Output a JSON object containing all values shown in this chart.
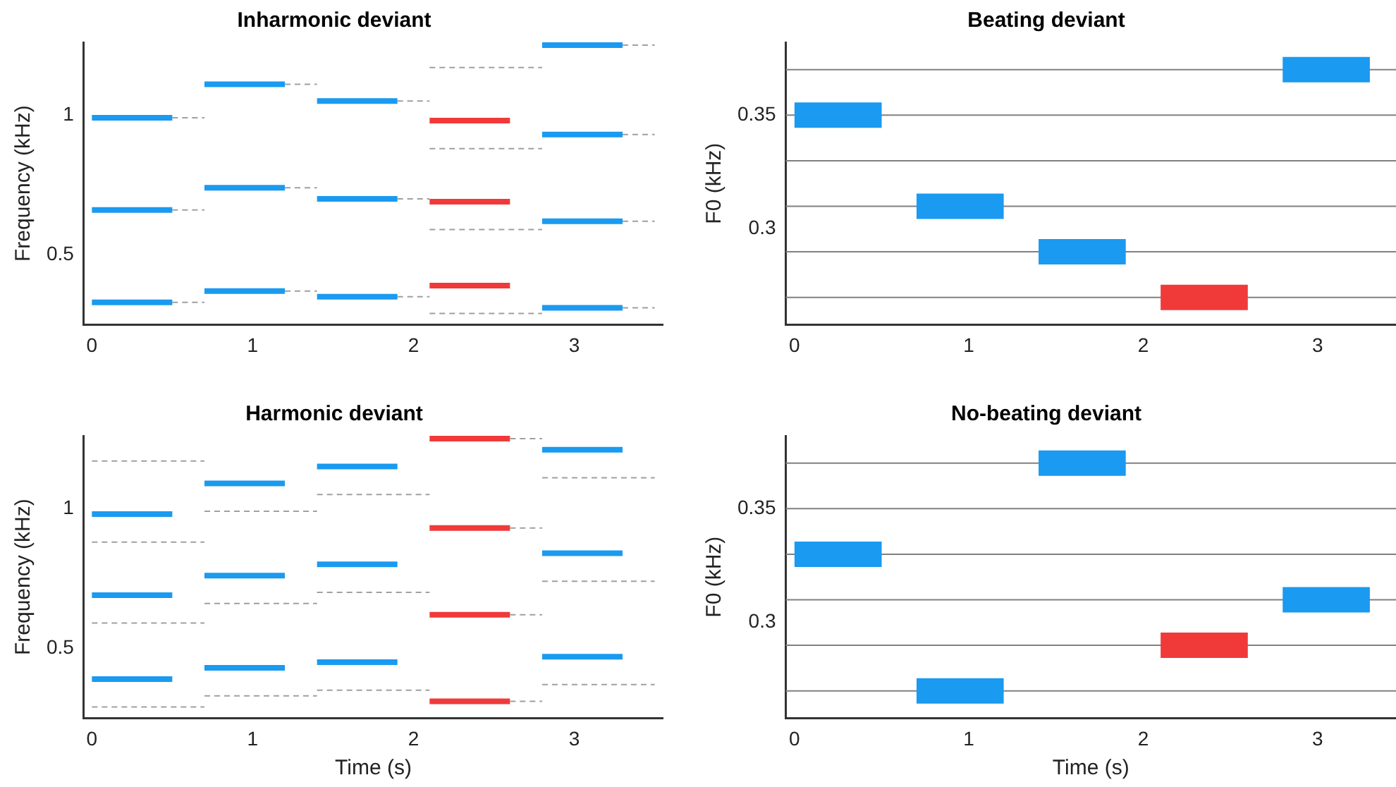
{
  "chart_data": [
    {
      "type": "line",
      "title": "Inharmonic deviant",
      "ylabel": "Frequency (kHz)",
      "xlim": [
        -0.05,
        3.55
      ],
      "xticks": [
        0,
        1,
        2,
        3
      ],
      "ylim": [
        0.25,
        1.26
      ],
      "yticks": [
        0.5,
        1
      ],
      "grid": false,
      "legend": false,
      "marker": "none",
      "series": [
        {
          "color": "#1a9af0",
          "x": [
            0,
            0.5
          ],
          "values": [
            0.99,
            0.99
          ]
        },
        {
          "color": "#1a9af0",
          "x": [
            0,
            0.5
          ],
          "values": [
            0.66,
            0.66
          ]
        },
        {
          "color": "#1a9af0",
          "x": [
            0,
            0.5
          ],
          "values": [
            0.33,
            0.33
          ]
        },
        {
          "color": "#1a9af0",
          "x": [
            0.7,
            1.2
          ],
          "values": [
            1.11,
            1.11
          ]
        },
        {
          "color": "#1a9af0",
          "x": [
            0.7,
            1.2
          ],
          "values": [
            0.74,
            0.74
          ]
        },
        {
          "color": "#1a9af0",
          "x": [
            0.7,
            1.2
          ],
          "values": [
            0.37,
            0.37
          ]
        },
        {
          "color": "#1a9af0",
          "x": [
            1.4,
            1.9
          ],
          "values": [
            1.05,
            1.05
          ]
        },
        {
          "color": "#1a9af0",
          "x": [
            1.4,
            1.9
          ],
          "values": [
            0.7,
            0.7
          ]
        },
        {
          "color": "#1a9af0",
          "x": [
            1.4,
            1.9
          ],
          "values": [
            0.35,
            0.35
          ]
        },
        {
          "color": "#f03a3a",
          "x": [
            2.1,
            2.6
          ],
          "values": [
            0.98,
            0.98
          ]
        },
        {
          "color": "#f03a3a",
          "x": [
            2.1,
            2.6
          ],
          "values": [
            0.69,
            0.69
          ]
        },
        {
          "color": "#f03a3a",
          "x": [
            2.1,
            2.6
          ],
          "values": [
            0.39,
            0.39
          ]
        },
        {
          "color": "#1a9af0",
          "x": [
            2.8,
            3.3
          ],
          "values": [
            1.25,
            1.25
          ]
        },
        {
          "color": "#1a9af0",
          "x": [
            2.8,
            3.3
          ],
          "values": [
            0.93,
            0.93
          ]
        },
        {
          "color": "#1a9af0",
          "x": [
            2.8,
            3.3
          ],
          "values": [
            0.62,
            0.62
          ]
        },
        {
          "color": "#1a9af0",
          "x": [
            2.8,
            3.3
          ],
          "values": [
            0.31,
            0.31
          ]
        },
        {
          "color": "#a0a0a0",
          "line_style": "dashed",
          "x": [
            0.5,
            0.7
          ],
          "values": [
            0.99,
            0.99
          ]
        },
        {
          "color": "#a0a0a0",
          "line_style": "dashed",
          "x": [
            0.5,
            0.7
          ],
          "values": [
            0.66,
            0.66
          ]
        },
        {
          "color": "#a0a0a0",
          "line_style": "dashed",
          "x": [
            0.5,
            0.7
          ],
          "values": [
            0.33,
            0.33
          ]
        },
        {
          "color": "#a0a0a0",
          "line_style": "dashed",
          "x": [
            1.2,
            1.4
          ],
          "values": [
            1.11,
            1.11
          ]
        },
        {
          "color": "#a0a0a0",
          "line_style": "dashed",
          "x": [
            1.2,
            1.4
          ],
          "values": [
            0.74,
            0.74
          ]
        },
        {
          "color": "#a0a0a0",
          "line_style": "dashed",
          "x": [
            1.2,
            1.4
          ],
          "values": [
            0.37,
            0.37
          ]
        },
        {
          "color": "#a0a0a0",
          "line_style": "dashed",
          "x": [
            1.9,
            2.1
          ],
          "values": [
            1.05,
            1.05
          ]
        },
        {
          "color": "#a0a0a0",
          "line_style": "dashed",
          "x": [
            1.9,
            2.1
          ],
          "values": [
            0.7,
            0.7
          ]
        },
        {
          "color": "#a0a0a0",
          "line_style": "dashed",
          "x": [
            1.9,
            2.1
          ],
          "values": [
            0.35,
            0.35
          ]
        },
        {
          "color": "#a0a0a0",
          "line_style": "dashed",
          "x": [
            2.1,
            2.8
          ],
          "values": [
            1.17,
            1.17
          ]
        },
        {
          "color": "#a0a0a0",
          "line_style": "dashed",
          "x": [
            2.1,
            2.8
          ],
          "values": [
            0.88,
            0.88
          ]
        },
        {
          "color": "#a0a0a0",
          "line_style": "dashed",
          "x": [
            2.1,
            2.8
          ],
          "values": [
            0.59,
            0.59
          ]
        },
        {
          "color": "#a0a0a0",
          "line_style": "dashed",
          "x": [
            2.1,
            2.8
          ],
          "values": [
            0.29,
            0.29
          ]
        },
        {
          "color": "#a0a0a0",
          "line_style": "dashed",
          "x": [
            3.3,
            3.5
          ],
          "values": [
            1.25,
            1.25
          ]
        },
        {
          "color": "#a0a0a0",
          "line_style": "dashed",
          "x": [
            3.3,
            3.5
          ],
          "values": [
            0.93,
            0.93
          ]
        },
        {
          "color": "#a0a0a0",
          "line_style": "dashed",
          "x": [
            3.3,
            3.5
          ],
          "values": [
            0.62,
            0.62
          ]
        },
        {
          "color": "#a0a0a0",
          "line_style": "dashed",
          "x": [
            3.3,
            3.5
          ],
          "values": [
            0.31,
            0.31
          ]
        }
      ]
    },
    {
      "type": "line",
      "title": "Beating deviant",
      "ylabel": "F0 (kHz)",
      "xlim": [
        -0.05,
        3.45
      ],
      "xticks": [
        0,
        1,
        2,
        3
      ],
      "ylim": [
        0.258,
        0.382
      ],
      "yticks": [
        0.3,
        0.35
      ],
      "grid": false,
      "legend": false,
      "marker": "none",
      "ref_lines": [
        {
          "axis": "y",
          "value": 0.27,
          "color": "#808080"
        },
        {
          "axis": "y",
          "value": 0.29,
          "color": "#808080"
        },
        {
          "axis": "y",
          "value": 0.31,
          "color": "#808080"
        },
        {
          "axis": "y",
          "value": 0.33,
          "color": "#808080"
        },
        {
          "axis": "y",
          "value": 0.35,
          "color": "#808080"
        },
        {
          "axis": "y",
          "value": 0.37,
          "color": "#808080"
        }
      ],
      "series": [
        {
          "color": "#1a9af0",
          "x": [
            0,
            0.5
          ],
          "values": [
            0.35,
            0.35
          ]
        },
        {
          "color": "#1a9af0",
          "x": [
            0.7,
            1.2
          ],
          "values": [
            0.31,
            0.31
          ]
        },
        {
          "color": "#1a9af0",
          "x": [
            1.4,
            1.9
          ],
          "values": [
            0.29,
            0.29
          ]
        },
        {
          "color": "#f03a3a",
          "x": [
            2.1,
            2.6
          ],
          "values": [
            0.27,
            0.27
          ]
        },
        {
          "color": "#1a9af0",
          "x": [
            2.8,
            3.3
          ],
          "values": [
            0.37,
            0.37
          ]
        }
      ]
    },
    {
      "type": "line",
      "title": "Harmonic deviant",
      "xlabel": "Time (s)",
      "ylabel": "Frequency (kHz)",
      "xlim": [
        -0.05,
        3.55
      ],
      "xticks": [
        0,
        1,
        2,
        3
      ],
      "ylim": [
        0.25,
        1.26
      ],
      "yticks": [
        0.5,
        1
      ],
      "grid": false,
      "legend": false,
      "marker": "none",
      "series": [
        {
          "color": "#1a9af0",
          "x": [
            0,
            0.5
          ],
          "values": [
            0.98,
            0.98
          ]
        },
        {
          "color": "#1a9af0",
          "x": [
            0,
            0.5
          ],
          "values": [
            0.69,
            0.69
          ]
        },
        {
          "color": "#1a9af0",
          "x": [
            0,
            0.5
          ],
          "values": [
            0.39,
            0.39
          ]
        },
        {
          "color": "#1a9af0",
          "x": [
            0.7,
            1.2
          ],
          "values": [
            1.09,
            1.09
          ]
        },
        {
          "color": "#1a9af0",
          "x": [
            0.7,
            1.2
          ],
          "values": [
            0.76,
            0.76
          ]
        },
        {
          "color": "#1a9af0",
          "x": [
            0.7,
            1.2
          ],
          "values": [
            0.43,
            0.43
          ]
        },
        {
          "color": "#1a9af0",
          "x": [
            1.4,
            1.9
          ],
          "values": [
            1.15,
            1.15
          ]
        },
        {
          "color": "#1a9af0",
          "x": [
            1.4,
            1.9
          ],
          "values": [
            0.8,
            0.8
          ]
        },
        {
          "color": "#1a9af0",
          "x": [
            1.4,
            1.9
          ],
          "values": [
            0.45,
            0.45
          ]
        },
        {
          "color": "#f03a3a",
          "x": [
            2.1,
            2.6
          ],
          "values": [
            1.25,
            1.25
          ]
        },
        {
          "color": "#f03a3a",
          "x": [
            2.1,
            2.6
          ],
          "values": [
            0.93,
            0.93
          ]
        },
        {
          "color": "#f03a3a",
          "x": [
            2.1,
            2.6
          ],
          "values": [
            0.62,
            0.62
          ]
        },
        {
          "color": "#f03a3a",
          "x": [
            2.1,
            2.6
          ],
          "values": [
            0.31,
            0.31
          ]
        },
        {
          "color": "#1a9af0",
          "x": [
            2.8,
            3.3
          ],
          "values": [
            1.21,
            1.21
          ]
        },
        {
          "color": "#1a9af0",
          "x": [
            2.8,
            3.3
          ],
          "values": [
            0.84,
            0.84
          ]
        },
        {
          "color": "#1a9af0",
          "x": [
            2.8,
            3.3
          ],
          "values": [
            0.47,
            0.47
          ]
        },
        {
          "color": "#a0a0a0",
          "line_style": "dashed",
          "x": [
            0,
            0.7
          ],
          "values": [
            1.17,
            1.17
          ]
        },
        {
          "color": "#a0a0a0",
          "line_style": "dashed",
          "x": [
            0,
            0.7
          ],
          "values": [
            0.88,
            0.88
          ]
        },
        {
          "color": "#a0a0a0",
          "line_style": "dashed",
          "x": [
            0,
            0.7
          ],
          "values": [
            0.59,
            0.59
          ]
        },
        {
          "color": "#a0a0a0",
          "line_style": "dashed",
          "x": [
            0,
            0.7
          ],
          "values": [
            0.29,
            0.29
          ]
        },
        {
          "color": "#a0a0a0",
          "line_style": "dashed",
          "x": [
            0.7,
            1.4
          ],
          "values": [
            0.99,
            0.99
          ]
        },
        {
          "color": "#a0a0a0",
          "line_style": "dashed",
          "x": [
            0.7,
            1.4
          ],
          "values": [
            0.66,
            0.66
          ]
        },
        {
          "color": "#a0a0a0",
          "line_style": "dashed",
          "x": [
            0.7,
            1.4
          ],
          "values": [
            0.33,
            0.33
          ]
        },
        {
          "color": "#a0a0a0",
          "line_style": "dashed",
          "x": [
            1.4,
            2.1
          ],
          "values": [
            1.05,
            1.05
          ]
        },
        {
          "color": "#a0a0a0",
          "line_style": "dashed",
          "x": [
            1.4,
            2.1
          ],
          "values": [
            0.7,
            0.7
          ]
        },
        {
          "color": "#a0a0a0",
          "line_style": "dashed",
          "x": [
            1.4,
            2.1
          ],
          "values": [
            0.35,
            0.35
          ]
        },
        {
          "color": "#a0a0a0",
          "line_style": "dashed",
          "x": [
            2.6,
            2.8
          ],
          "values": [
            1.25,
            1.25
          ]
        },
        {
          "color": "#a0a0a0",
          "line_style": "dashed",
          "x": [
            2.6,
            2.8
          ],
          "values": [
            0.93,
            0.93
          ]
        },
        {
          "color": "#a0a0a0",
          "line_style": "dashed",
          "x": [
            2.6,
            2.8
          ],
          "values": [
            0.62,
            0.62
          ]
        },
        {
          "color": "#a0a0a0",
          "line_style": "dashed",
          "x": [
            2.6,
            2.8
          ],
          "values": [
            0.31,
            0.31
          ]
        },
        {
          "color": "#a0a0a0",
          "line_style": "dashed",
          "x": [
            2.8,
            3.5
          ],
          "values": [
            1.11,
            1.11
          ]
        },
        {
          "color": "#a0a0a0",
          "line_style": "dashed",
          "x": [
            2.8,
            3.5
          ],
          "values": [
            0.74,
            0.74
          ]
        },
        {
          "color": "#a0a0a0",
          "line_style": "dashed",
          "x": [
            2.8,
            3.5
          ],
          "values": [
            0.37,
            0.37
          ]
        }
      ]
    },
    {
      "type": "line",
      "title": "No-beating deviant",
      "xlabel": "Time (s)",
      "ylabel": "F0 (kHz)",
      "xlim": [
        -0.05,
        3.45
      ],
      "xticks": [
        0,
        1,
        2,
        3
      ],
      "ylim": [
        0.258,
        0.382
      ],
      "yticks": [
        0.3,
        0.35
      ],
      "grid": false,
      "legend": false,
      "marker": "none",
      "ref_lines": [
        {
          "axis": "y",
          "value": 0.27,
          "color": "#808080"
        },
        {
          "axis": "y",
          "value": 0.29,
          "color": "#808080"
        },
        {
          "axis": "y",
          "value": 0.31,
          "color": "#808080"
        },
        {
          "axis": "y",
          "value": 0.33,
          "color": "#808080"
        },
        {
          "axis": "y",
          "value": 0.35,
          "color": "#808080"
        },
        {
          "axis": "y",
          "value": 0.37,
          "color": "#808080"
        }
      ],
      "series": [
        {
          "color": "#1a9af0",
          "x": [
            0,
            0.5
          ],
          "values": [
            0.33,
            0.33
          ]
        },
        {
          "color": "#1a9af0",
          "x": [
            0.7,
            1.2
          ],
          "values": [
            0.27,
            0.27
          ]
        },
        {
          "color": "#1a9af0",
          "x": [
            1.4,
            1.9
          ],
          "values": [
            0.37,
            0.37
          ]
        },
        {
          "color": "#f03a3a",
          "x": [
            2.1,
            2.6
          ],
          "values": [
            0.29,
            0.29
          ]
        },
        {
          "color": "#1a9af0",
          "x": [
            2.8,
            3.3
          ],
          "values": [
            0.31,
            0.31
          ]
        }
      ]
    }
  ]
}
